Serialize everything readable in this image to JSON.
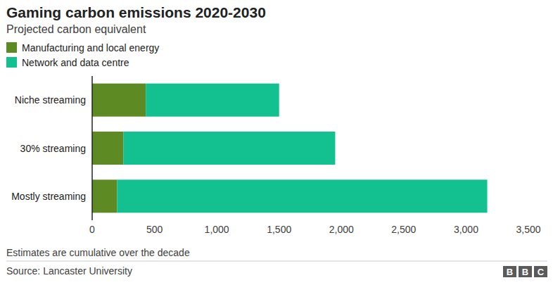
{
  "chart_data": {
    "type": "bar",
    "orientation": "horizontal",
    "stacked": true,
    "grid": false,
    "legend": "top-left",
    "title": "Gaming carbon emissions 2020-2030",
    "subtitle": "Projected carbon equivalent",
    "note": "Estimates are cumulative over the decade",
    "source": "Source: Lancaster University",
    "logo": "BBC",
    "categories": [
      "Niche streaming",
      "30% streaming",
      "Mostly streaming"
    ],
    "series": [
      {
        "name": "Manufacturing and local energy",
        "color": "#5e8a23",
        "values": [
          430,
          250,
          200
        ]
      },
      {
        "name": "Network and data centre",
        "color": "#13c08f",
        "values": [
          1070,
          1700,
          2970
        ]
      }
    ],
    "xlim": [
      0,
      3500
    ],
    "xticks": [
      0,
      500,
      {
        "value": 1000,
        "label": "1,000"
      },
      {
        "value": 1500,
        "label": "1,500"
      },
      {
        "value": 2000,
        "label": "2,000"
      },
      {
        "value": 2500,
        "label": "2,500"
      },
      {
        "value": 3000,
        "label": "3,000"
      },
      {
        "value": 3500,
        "label": "3,500"
      }
    ]
  }
}
